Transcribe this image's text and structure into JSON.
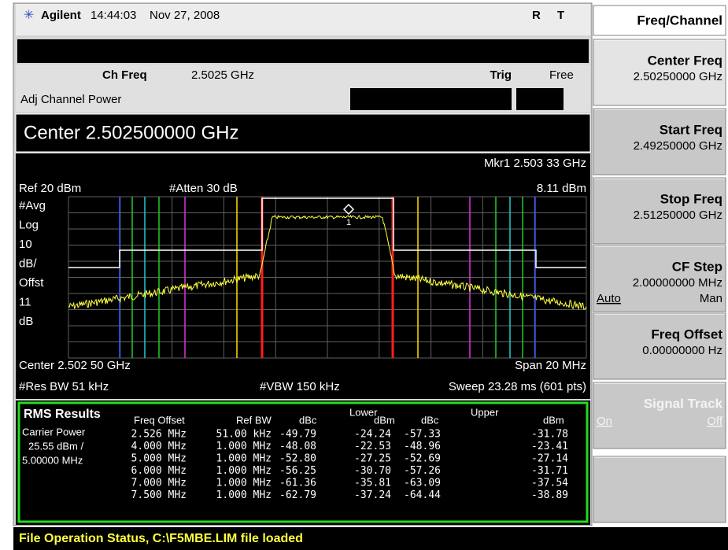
{
  "header": {
    "brand": "Agilent",
    "time": "14:44:03",
    "date": "Nov 27, 2008",
    "flags": [
      "R",
      "T"
    ]
  },
  "menu": {
    "title": "Freq/Channel",
    "keys": [
      {
        "label": "Center Freq",
        "value": "2.50250000 GHz"
      },
      {
        "label": "Start Freq",
        "value": "2.49250000 GHz"
      },
      {
        "label": "Stop Freq",
        "value": "2.51250000 GHz"
      },
      {
        "label": "CF Step",
        "value": "2.00000000 MHz",
        "options": [
          "Auto",
          "Man"
        ]
      },
      {
        "label": "Freq Offset",
        "value": "0.00000000  Hz"
      },
      {
        "label": "Signal Track",
        "options": [
          "On",
          "Off"
        ]
      }
    ]
  },
  "settings": {
    "ch_freq_label": "Ch Freq",
    "ch_freq": "2.5025 GHz",
    "trig_label": "Trig",
    "trig": "Free",
    "measurement": "Adj Channel Power",
    "active_entry": "Center 2.502500000 GHz"
  },
  "plot": {
    "marker": "Mkr1  2.503 33 GHz",
    "marker_level": "8.11 dBm",
    "ref": "Ref 20 dBm",
    "atten": "#Atten 30 dB",
    "left_labels": [
      "#Avg",
      "Log",
      "10",
      "dB/",
      "Offst",
      "11",
      "dB"
    ],
    "marker_id": "1",
    "center": "Center 2.502 50 GHz",
    "span": "Span 20 MHz",
    "res_bw": "#Res BW 51 kHz",
    "vbw": "#VBW 150 kHz",
    "sweep": "Sweep 23.28 ms (601 pts)"
  },
  "results": {
    "title": "RMS Results",
    "carrier": [
      "Carrier Power",
      "25.55 dBm /",
      "5.00000 MHz"
    ],
    "headers": [
      "Freq Offset",
      "Ref BW",
      "dBc",
      "Lower",
      "dBm",
      "dBc",
      "Upper",
      "dBm"
    ],
    "rows": [
      [
        "2.526 MHz",
        "51.00 kHz",
        "-49.79",
        "-24.24",
        "-57.33",
        "-31.78"
      ],
      [
        "4.000 MHz",
        "1.000 MHz",
        "-48.08",
        "-22.53",
        "-48.96",
        "-23.41"
      ],
      [
        "5.000 MHz",
        "1.000 MHz",
        "-52.80",
        "-27.25",
        "-52.69",
        "-27.14"
      ],
      [
        "6.000 MHz",
        "1.000 MHz",
        "-56.25",
        "-30.70",
        "-57.26",
        "-31.71"
      ],
      [
        "7.000 MHz",
        "1.000 MHz",
        "-61.36",
        "-35.81",
        "-63.09",
        "-37.54"
      ],
      [
        "7.500 MHz",
        "1.000 MHz",
        "-62.79",
        "-37.24",
        "-64.44",
        "-38.89"
      ]
    ]
  },
  "status": "File Operation Status, C:\\F5MBE.LIM file loaded"
}
